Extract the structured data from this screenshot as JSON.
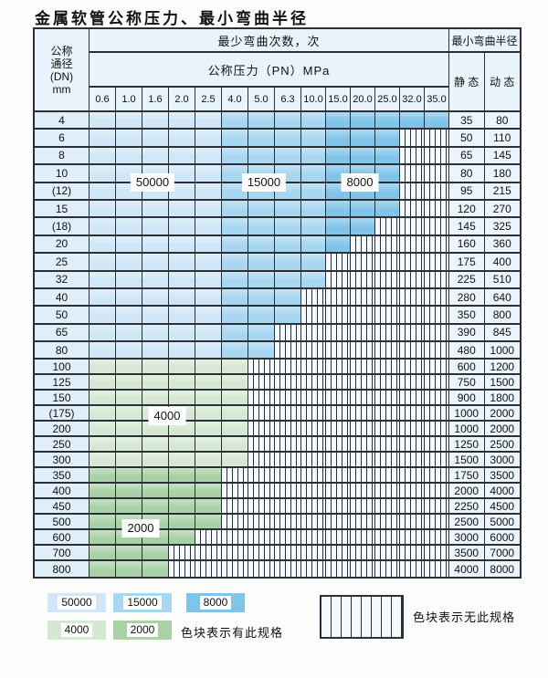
{
  "title": "金属软管公称压力、最小弯曲半径",
  "table": {
    "header": {
      "dn_lines": [
        "公称",
        "通径",
        "(DN)",
        "mm"
      ],
      "cycles_label": "最少弯曲次数，次",
      "pressure_label": "公称压力（PN）MPa",
      "pressure_columns": [
        "0.6",
        "1.0",
        "1.6",
        "2.0",
        "2.5",
        "4.0",
        "5.0",
        "6.3",
        "10.0",
        "15.0",
        "20.0",
        "25.0",
        "32.0",
        "35.0"
      ],
      "radius_label": "最小弯曲半径",
      "static_label": "静 态",
      "dynamic_label": "动 态"
    },
    "rows": [
      {
        "dn": "4",
        "static": "35",
        "dynamic": "80",
        "spec_cols": 14,
        "band": "blue"
      },
      {
        "dn": "6",
        "static": "50",
        "dynamic": "110",
        "spec_cols": 12,
        "band": "blue"
      },
      {
        "dn": "8",
        "static": "65",
        "dynamic": "145",
        "spec_cols": 12,
        "band": "blue"
      },
      {
        "dn": "10",
        "static": "80",
        "dynamic": "180",
        "spec_cols": 12,
        "band": "blue"
      },
      {
        "dn": "(12)",
        "static": "95",
        "dynamic": "215",
        "spec_cols": 12,
        "band": "blue"
      },
      {
        "dn": "15",
        "static": "120",
        "dynamic": "270",
        "spec_cols": 12,
        "band": "blue"
      },
      {
        "dn": "(18)",
        "static": "145",
        "dynamic": "325",
        "spec_cols": 11,
        "band": "blue"
      },
      {
        "dn": "20",
        "static": "160",
        "dynamic": "360",
        "spec_cols": 10,
        "band": "blue"
      },
      {
        "dn": "25",
        "static": "175",
        "dynamic": "400",
        "spec_cols": 9,
        "band": "blue"
      },
      {
        "dn": "32",
        "static": "225",
        "dynamic": "510",
        "spec_cols": 9,
        "band": "blue"
      },
      {
        "dn": "40",
        "static": "280",
        "dynamic": "640",
        "spec_cols": 8,
        "band": "blue"
      },
      {
        "dn": "50",
        "static": "350",
        "dynamic": "800",
        "spec_cols": 8,
        "band": "blue"
      },
      {
        "dn": "65",
        "static": "390",
        "dynamic": "845",
        "spec_cols": 7,
        "band": "blue"
      },
      {
        "dn": "80",
        "static": "480",
        "dynamic": "1000",
        "spec_cols": 7,
        "band": "blue"
      },
      {
        "dn": "100",
        "static": "600",
        "dynamic": "1200",
        "spec_cols": 6,
        "band": "green4000"
      },
      {
        "dn": "125",
        "static": "750",
        "dynamic": "1500",
        "spec_cols": 6,
        "band": "green4000"
      },
      {
        "dn": "150",
        "static": "900",
        "dynamic": "1800",
        "spec_cols": 6,
        "band": "green4000"
      },
      {
        "dn": "(175)",
        "static": "1000",
        "dynamic": "2000",
        "spec_cols": 6,
        "band": "green4000"
      },
      {
        "dn": "200",
        "static": "1000",
        "dynamic": "2000",
        "spec_cols": 6,
        "band": "green4000"
      },
      {
        "dn": "250",
        "static": "1250",
        "dynamic": "2500",
        "spec_cols": 6,
        "band": "green4000"
      },
      {
        "dn": "300",
        "static": "1500",
        "dynamic": "3000",
        "spec_cols": 6,
        "band": "green4000"
      },
      {
        "dn": "350",
        "static": "1750",
        "dynamic": "3500",
        "spec_cols": 5,
        "band": "green2000"
      },
      {
        "dn": "400",
        "static": "2000",
        "dynamic": "4000",
        "spec_cols": 5,
        "band": "green2000"
      },
      {
        "dn": "450",
        "static": "2250",
        "dynamic": "4500",
        "spec_cols": 5,
        "band": "green2000"
      },
      {
        "dn": "500",
        "static": "2500",
        "dynamic": "5000",
        "spec_cols": 5,
        "band": "green2000"
      },
      {
        "dn": "600",
        "static": "3000",
        "dynamic": "6000",
        "spec_cols": 4,
        "band": "green2000"
      },
      {
        "dn": "700",
        "static": "3500",
        "dynamic": "7000",
        "spec_cols": 3,
        "band": "green2000"
      },
      {
        "dn": "800",
        "static": "4000",
        "dynamic": "8000",
        "spec_cols": 3,
        "band": "green2000"
      }
    ],
    "overlays": [
      {
        "id": "ov-50000",
        "text": "50000"
      },
      {
        "id": "ov-15000",
        "text": "15000"
      },
      {
        "id": "ov-8000",
        "text": "8000"
      },
      {
        "id": "ov-4000",
        "text": "4000"
      },
      {
        "id": "ov-2000",
        "text": "2000"
      }
    ]
  },
  "legend": {
    "items": [
      {
        "label": "50000",
        "color_key": "blue_light"
      },
      {
        "label": "15000",
        "color_key": "blue_medium"
      },
      {
        "label": "8000",
        "color_key": "blue_dark"
      },
      {
        "label": "4000",
        "color_key": "green_light"
      },
      {
        "label": "2000",
        "color_key": "green_medium"
      }
    ],
    "has_spec_text": "色块表示有此规格",
    "no_spec_text": "色块表示无此规格"
  },
  "colors": {
    "blue_light": "#cfe7f6",
    "blue_medium": "#a6d6f0",
    "blue_dark": "#80c4ea",
    "green_light": "#d5e8d3",
    "green_medium": "#a8d2a6",
    "header_bg": "#e9f3fb",
    "dn_col_bg": "#e0eefa",
    "value_bg": "#ecf4fb",
    "hatch_bg": "#f4f9fd",
    "grid": "#2b3036",
    "page_bg": "#fdfdfc"
  }
}
